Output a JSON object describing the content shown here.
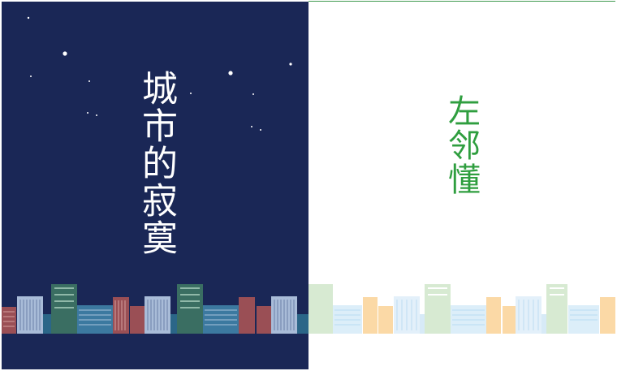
{
  "left": {
    "title": "城市的寂寞",
    "colors": {
      "background": "#1a2756",
      "moon": "#c9a742",
      "star": "#ffffff",
      "title": "#ffffff"
    },
    "icons": [
      "crescent-moon-icon",
      "star-icon",
      "city-skyline-icon"
    ]
  },
  "right": {
    "title": "左邻懂",
    "colors": {
      "background": "#ffffff",
      "title": "#2f9e3f",
      "accent_line": "#3f9a4f"
    },
    "icons": [
      "pastel-city-skyline-icon"
    ]
  }
}
